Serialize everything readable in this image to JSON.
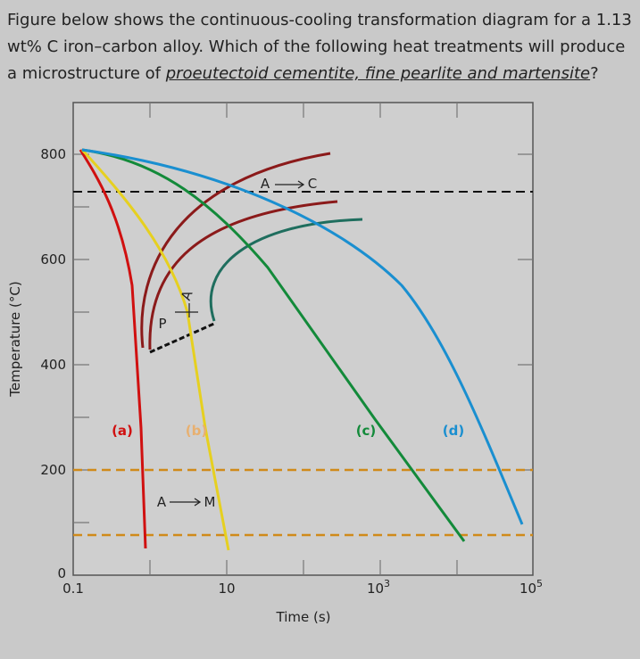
{
  "question": {
    "text_before": "Figure below shows the continuous-cooling transformation diagram for a 1.13 wt% C iron–carbon alloy. Which of the following heat treatments will produce a microstructure of ",
    "underlined": "proeutectoid cementite, fine pearlite and martensite",
    "text_after": "?"
  },
  "figure": {
    "y_axis_label": "Temperature (°C)",
    "x_axis_label": "Time (s)",
    "y_tick_labels": [
      "0",
      "200",
      "400",
      "600",
      "800"
    ],
    "x_tick_labels": [
      {
        "base": "0.1"
      },
      {
        "base": "10"
      },
      {
        "base": "10",
        "exp": "3"
      },
      {
        "base": "10",
        "exp": "5"
      }
    ],
    "annotations": {
      "a_to_c": {
        "from": "A",
        "to": "C"
      },
      "a_to_m": {
        "from": "A",
        "to": "M"
      },
      "pearlite": "P",
      "austenite": "A"
    },
    "curve_labels": [
      "(a)",
      "(b)",
      "(c)",
      "(d)"
    ]
  }
}
